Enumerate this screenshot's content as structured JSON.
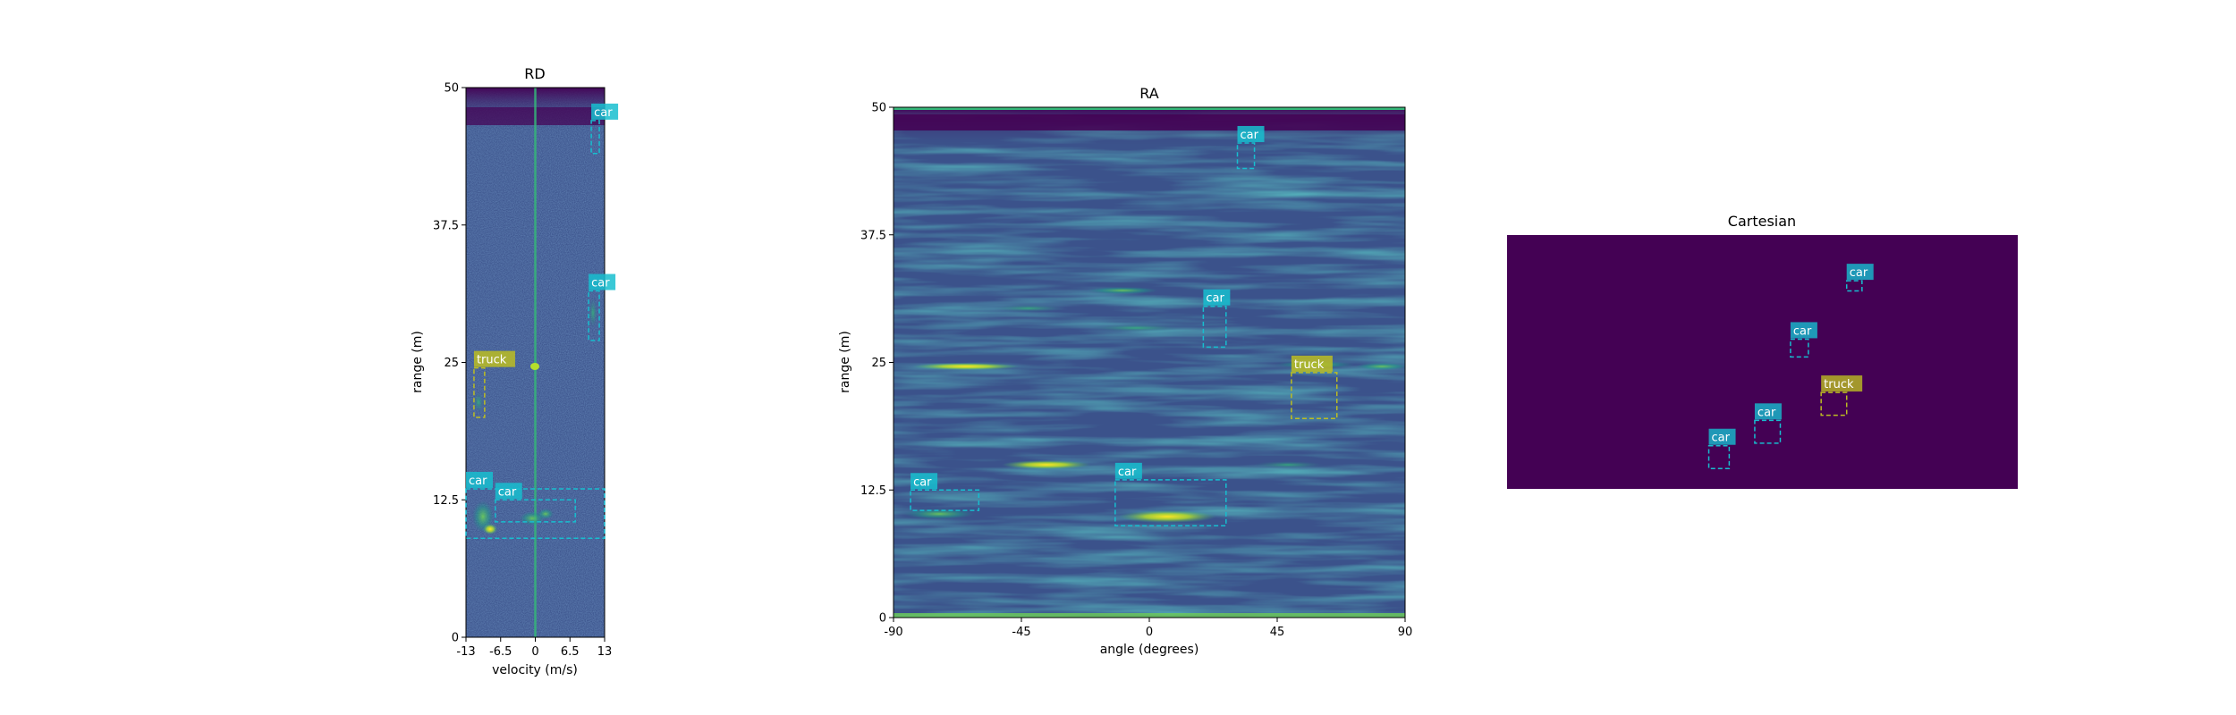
{
  "chart_data": [
    {
      "type": "heatmap",
      "title": "RD",
      "xlabel": "velocity (m/s)",
      "ylabel": "range (m)",
      "xlim": [
        -13,
        13
      ],
      "ylim": [
        0,
        50
      ],
      "xticks": [
        -13,
        -6.5,
        0,
        6.5,
        13
      ],
      "xtick_labels": [
        "-13",
        "-6.5",
        "0",
        "6.5",
        "13"
      ],
      "yticks": [
        0,
        12.5,
        25,
        37.5,
        50
      ],
      "ytick_labels": [
        "0",
        "12.5",
        "25",
        "37.5",
        "50"
      ],
      "colormap": "viridis",
      "detections": [
        {
          "label": "car",
          "color": "#17becf",
          "x": [
            10.5,
            12.0
          ],
          "y": [
            44.0,
            47.0
          ]
        },
        {
          "label": "car",
          "color": "#17becf",
          "x": [
            10.0,
            12.0
          ],
          "y": [
            27.0,
            31.5
          ]
        },
        {
          "label": "truck",
          "color": "#bcbd22",
          "x": [
            -11.5,
            -9.5
          ],
          "y": [
            20.0,
            24.5
          ]
        },
        {
          "label": "car",
          "color": "#17becf",
          "x": [
            -13.0,
            13.0
          ],
          "y": [
            9.0,
            13.5
          ]
        },
        {
          "label": "car",
          "color": "#17becf",
          "x": [
            -7.5,
            7.5
          ],
          "y": [
            10.5,
            12.5
          ]
        }
      ]
    },
    {
      "type": "heatmap",
      "title": "RA",
      "xlabel": "angle (degrees)",
      "ylabel": "range (m)",
      "xlim": [
        -90,
        90
      ],
      "ylim": [
        0,
        50
      ],
      "xticks": [
        -90,
        -45,
        0,
        45,
        90
      ],
      "xtick_labels": [
        "-90",
        "-45",
        "0",
        "45",
        "90"
      ],
      "yticks": [
        0,
        12.5,
        25,
        37.5,
        50
      ],
      "ytick_labels": [
        "0",
        "12.5",
        "25",
        "37.5",
        "50"
      ],
      "colormap": "viridis",
      "detections": [
        {
          "label": "car",
          "color": "#17becf",
          "x": [
            31,
            37
          ],
          "y": [
            44.0,
            46.5
          ]
        },
        {
          "label": "car",
          "color": "#17becf",
          "x": [
            19,
            27
          ],
          "y": [
            26.5,
            30.5
          ]
        },
        {
          "label": "truck",
          "color": "#bcbd22",
          "x": [
            50,
            66
          ],
          "y": [
            19.5,
            24.0
          ]
        },
        {
          "label": "car",
          "color": "#17becf",
          "x": [
            -84,
            -60
          ],
          "y": [
            10.5,
            12.5
          ]
        },
        {
          "label": "car",
          "color": "#17becf",
          "x": [
            -12,
            27
          ],
          "y": [
            9.0,
            13.5
          ]
        }
      ]
    },
    {
      "type": "heatmap",
      "title": "Cartesian",
      "axes": "off",
      "background": "#440154",
      "detections": [
        {
          "label": "car",
          "color": "#17becf",
          "x": [
            0.665,
            0.695
          ],
          "y": [
            0.18,
            0.22
          ]
        },
        {
          "label": "car",
          "color": "#17becf",
          "x": [
            0.555,
            0.59
          ],
          "y": [
            0.41,
            0.48
          ]
        },
        {
          "label": "truck",
          "color": "#bcbd22",
          "x": [
            0.615,
            0.665
          ],
          "y": [
            0.62,
            0.71
          ]
        },
        {
          "label": "car",
          "color": "#17becf",
          "x": [
            0.485,
            0.535
          ],
          "y": [
            0.73,
            0.82
          ]
        },
        {
          "label": "car",
          "color": "#17becf",
          "x": [
            0.395,
            0.435
          ],
          "y": [
            0.83,
            0.92
          ]
        }
      ]
    }
  ]
}
